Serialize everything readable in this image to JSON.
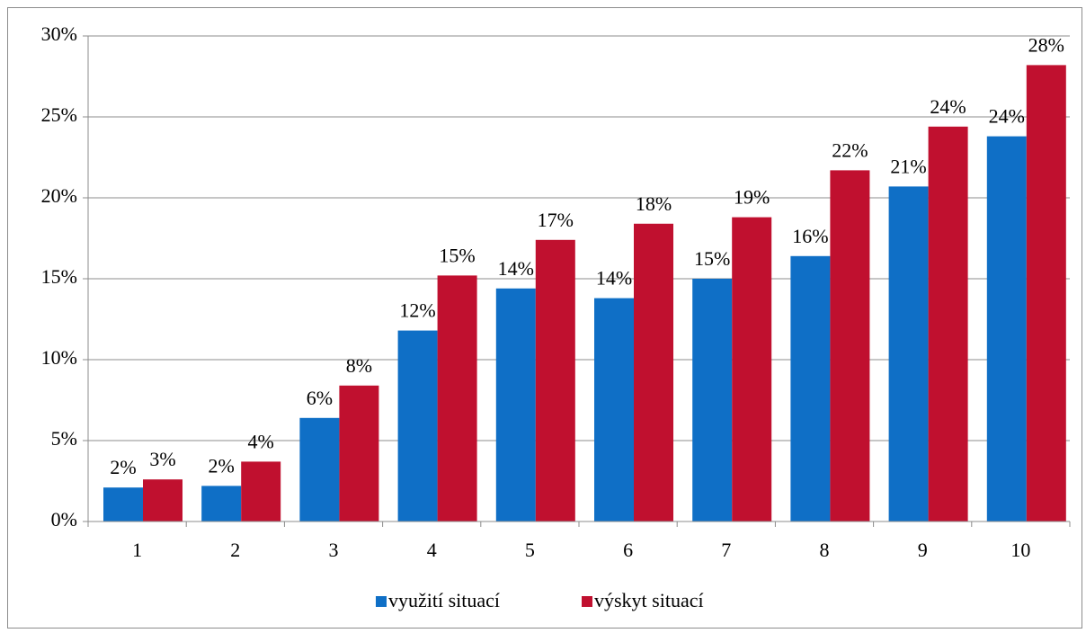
{
  "chart_data": {
    "type": "bar",
    "categories": [
      "1",
      "2",
      "3",
      "4",
      "5",
      "6",
      "7",
      "8",
      "9",
      "10"
    ],
    "series": [
      {
        "name": "využití situací",
        "color": "#0f6fc6",
        "values": [
          2.1,
          2.2,
          6.4,
          11.8,
          14.4,
          13.8,
          15.0,
          16.4,
          20.7,
          23.8
        ],
        "value_labels": [
          "2%",
          "2%",
          "6%",
          "12%",
          "14%",
          "14%",
          "15%",
          "16%",
          "21%",
          "24%"
        ]
      },
      {
        "name": "výskyt situací",
        "color": "#c0102f",
        "values": [
          2.6,
          3.7,
          8.4,
          15.2,
          17.4,
          18.4,
          18.8,
          21.7,
          24.4,
          28.2
        ],
        "value_labels": [
          "3%",
          "4%",
          "8%",
          "15%",
          "17%",
          "18%",
          "19%",
          "22%",
          "24%",
          "28%"
        ]
      }
    ],
    "ylim": [
      0,
      30
    ],
    "yticks": [
      {
        "value": 0,
        "label": "0%"
      },
      {
        "value": 5,
        "label": "5%"
      },
      {
        "value": 10,
        "label": "10%"
      },
      {
        "value": 15,
        "label": "15%"
      },
      {
        "value": 20,
        "label": "20%"
      },
      {
        "value": 25,
        "label": "25%"
      },
      {
        "value": 30,
        "label": "30%"
      }
    ],
    "grid": true,
    "legend": "bottom"
  }
}
